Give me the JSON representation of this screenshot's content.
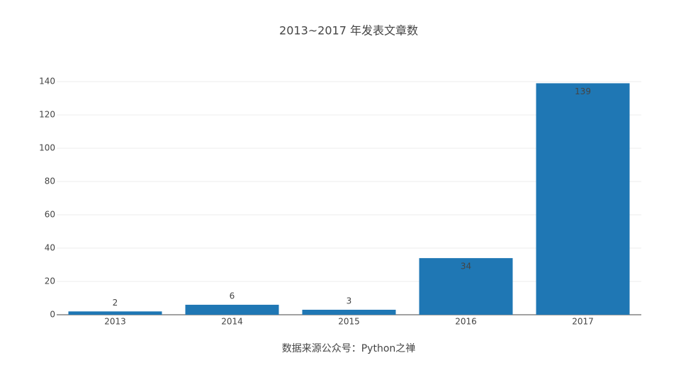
{
  "chart_data": {
    "type": "bar",
    "title": "2013~2017 年发表文章数",
    "x_label": "数据来源公众号：Python之禅",
    "categories": [
      "2013",
      "2014",
      "2015",
      "2016",
      "2017"
    ],
    "values": [
      2,
      6,
      3,
      34,
      139
    ],
    "color": "#1f77b4",
    "ylim": [
      0,
      146
    ],
    "yticks": [
      0,
      20,
      40,
      60,
      80,
      100,
      120,
      140
    ],
    "grid": true
  }
}
